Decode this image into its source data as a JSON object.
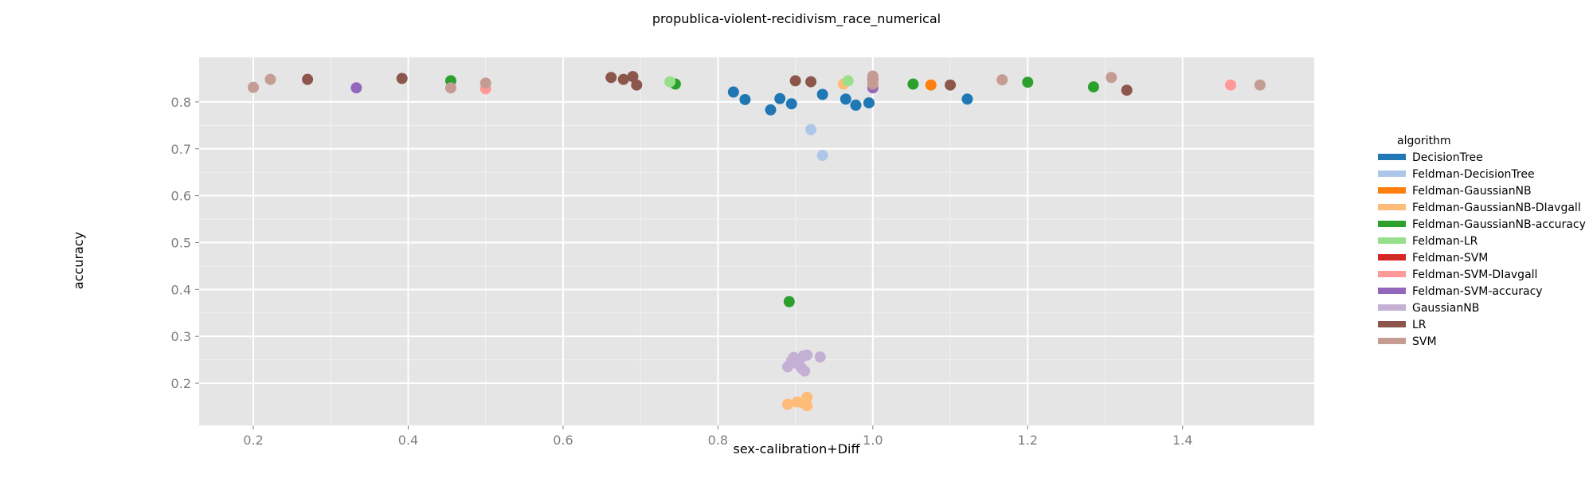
{
  "chart_data": {
    "type": "scatter",
    "title": "propublica-violent-recidivism_race_numerical",
    "xlabel": "sex-calibration+Diff",
    "ylabel": "accuracy",
    "xlim": [
      0.13,
      1.57
    ],
    "ylim": [
      0.11,
      0.895
    ],
    "x_ticks": [
      0.2,
      0.4,
      0.6,
      0.8,
      1.0,
      1.2,
      1.4
    ],
    "x_tick_labels": [
      "0.2",
      "0.4",
      "0.6",
      "0.8",
      "1.0",
      "1.2",
      "1.4"
    ],
    "y_ticks": [
      0.2,
      0.3,
      0.4,
      0.5,
      0.6,
      0.7,
      0.8
    ],
    "y_tick_labels": [
      "0.2",
      "0.3",
      "0.4",
      "0.5",
      "0.6",
      "0.7",
      "0.8"
    ],
    "grid": true,
    "background": "#e5e5e5",
    "legend_title": "algorithm",
    "legend_position": "right",
    "series": [
      {
        "name": "DecisionTree",
        "color": "#1f77b4",
        "points": [
          [
            0.82,
            0.821
          ],
          [
            0.835,
            0.805
          ],
          [
            0.868,
            0.783
          ],
          [
            0.88,
            0.807
          ],
          [
            0.895,
            0.796
          ],
          [
            0.935,
            0.816
          ],
          [
            0.965,
            0.806
          ],
          [
            0.978,
            0.793
          ],
          [
            0.995,
            0.798
          ],
          [
            1.122,
            0.806
          ]
        ]
      },
      {
        "name": "Feldman-DecisionTree",
        "color": "#aec7e8",
        "points": [
          [
            0.92,
            0.741
          ],
          [
            0.935,
            0.686
          ]
        ]
      },
      {
        "name": "Feldman-GaussianNB",
        "color": "#ff7f0e",
        "points": [
          [
            1.075,
            0.836
          ]
        ]
      },
      {
        "name": "Feldman-GaussianNB-DIavgall",
        "color": "#ffbb78",
        "points": [
          [
            0.962,
            0.838
          ],
          [
            0.89,
            0.155
          ],
          [
            0.902,
            0.16
          ],
          [
            0.91,
            0.158
          ],
          [
            0.915,
            0.17
          ],
          [
            0.915,
            0.152
          ]
        ]
      },
      {
        "name": "Feldman-GaussianNB-accuracy",
        "color": "#2ca02c",
        "points": [
          [
            0.455,
            0.845
          ],
          [
            0.745,
            0.838
          ],
          [
            1.052,
            0.838
          ],
          [
            1.2,
            0.842
          ],
          [
            1.285,
            0.832
          ],
          [
            0.892,
            0.374
          ]
        ]
      },
      {
        "name": "Feldman-LR",
        "color": "#98df8a",
        "points": [
          [
            0.738,
            0.843
          ],
          [
            0.968,
            0.845
          ]
        ]
      },
      {
        "name": "Feldman-SVM",
        "color": "#d62728",
        "points": []
      },
      {
        "name": "Feldman-SVM-DIavgall",
        "color": "#ff9896",
        "points": [
          [
            0.5,
            0.828
          ],
          [
            1.462,
            0.836
          ]
        ]
      },
      {
        "name": "Feldman-SVM-accuracy",
        "color": "#9467bd",
        "points": [
          [
            0.333,
            0.83
          ],
          [
            1.0,
            0.83
          ]
        ]
      },
      {
        "name": "GaussianNB",
        "color": "#c5b0d5",
        "points": [
          [
            0.89,
            0.235
          ],
          [
            0.895,
            0.248
          ],
          [
            0.898,
            0.255
          ],
          [
            0.902,
            0.242
          ],
          [
            0.905,
            0.25
          ],
          [
            0.908,
            0.232
          ],
          [
            0.91,
            0.258
          ],
          [
            0.912,
            0.226
          ],
          [
            0.915,
            0.26
          ],
          [
            0.932,
            0.256
          ],
          [
            0.9,
            0.245
          ]
        ]
      },
      {
        "name": "LR",
        "color": "#8c564b",
        "points": [
          [
            0.27,
            0.848
          ],
          [
            0.392,
            0.85
          ],
          [
            0.662,
            0.852
          ],
          [
            0.678,
            0.848
          ],
          [
            0.69,
            0.854
          ],
          [
            0.695,
            0.836
          ],
          [
            0.9,
            0.845
          ],
          [
            0.92,
            0.843
          ],
          [
            1.0,
            0.848
          ],
          [
            1.1,
            0.836
          ],
          [
            1.328,
            0.825
          ]
        ]
      },
      {
        "name": "SVM",
        "color": "#c49c94",
        "points": [
          [
            0.2,
            0.831
          ],
          [
            0.222,
            0.848
          ],
          [
            0.455,
            0.83
          ],
          [
            0.5,
            0.84
          ],
          [
            1.0,
            0.855
          ],
          [
            1.0,
            0.845
          ],
          [
            1.0,
            0.838
          ],
          [
            1.167,
            0.847
          ],
          [
            1.308,
            0.852
          ],
          [
            1.5,
            0.836
          ]
        ]
      }
    ]
  }
}
